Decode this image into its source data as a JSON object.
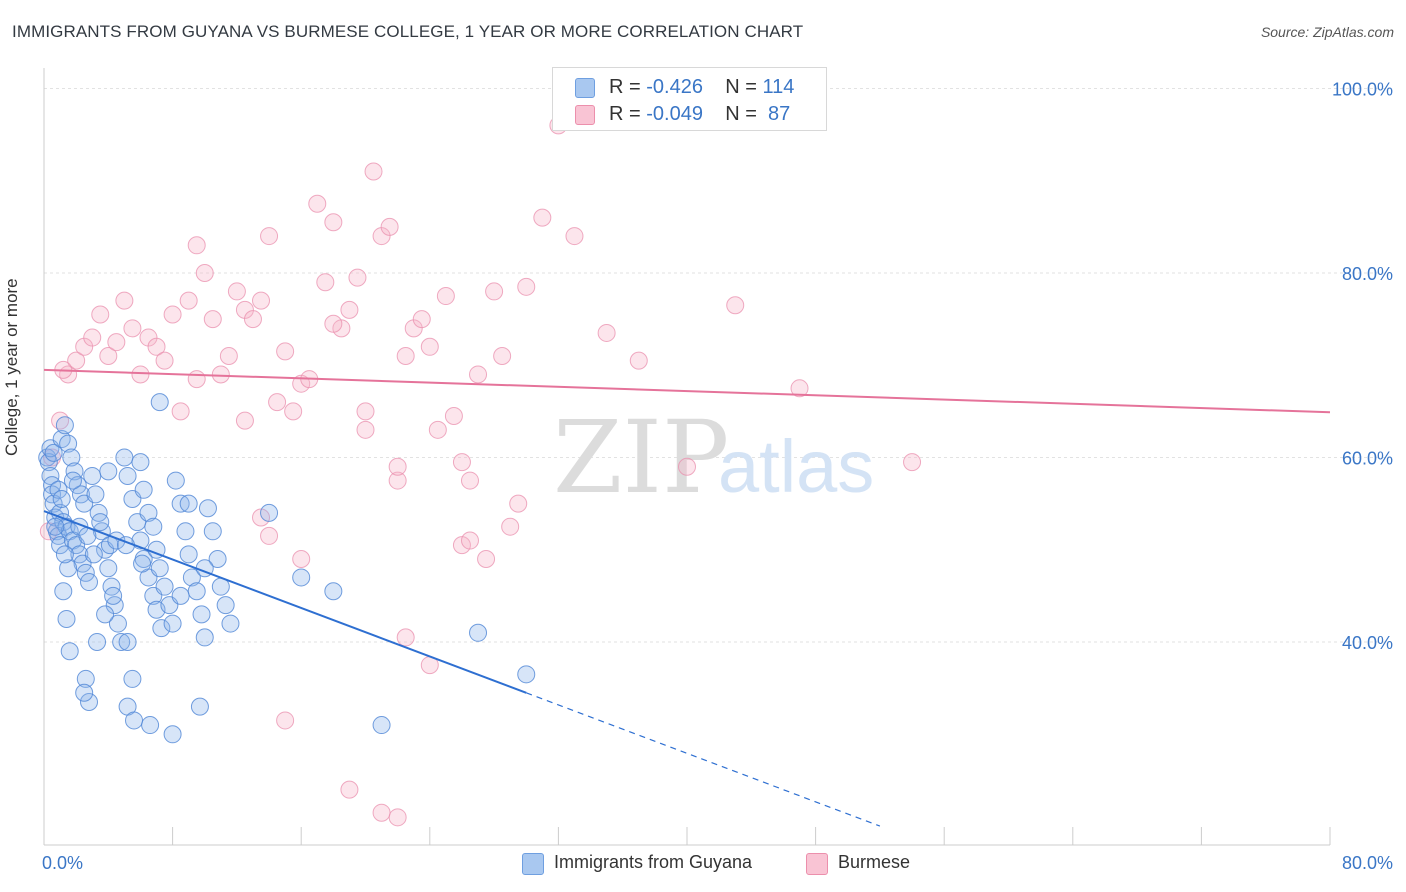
{
  "title": "IMMIGRANTS FROM GUYANA VS BURMESE COLLEGE, 1 YEAR OR MORE CORRELATION CHART",
  "source": "Source: ZipAtlas.com",
  "watermark": {
    "zip": "ZIP",
    "atlas": "atlas"
  },
  "legend": {
    "rows": [
      {
        "r_label": "R = ",
        "r_value": "-0.426",
        "n_label": "N = ",
        "n_value": "114",
        "color": "#a9c8f0",
        "border": "#6f9fe0"
      },
      {
        "r_label": "R = ",
        "r_value": "-0.049",
        "n_label": "N = ",
        "n_value": " 87",
        "color": "#f9c4d4",
        "border": "#ec8fac"
      }
    ]
  },
  "bottom_legend": [
    {
      "label": "Immigrants from Guyana",
      "color": "#a9c8f0",
      "border": "#6f9fe0"
    },
    {
      "label": "Burmese",
      "color": "#f9c4d4",
      "border": "#ec8fac"
    }
  ],
  "colors": {
    "blue_point_fill": "rgba(140,180,235,0.35)",
    "blue_point_stroke": "#4f86d6",
    "blue_line": "#2e6fd1",
    "pink_point_fill": "rgba(245,180,200,0.35)",
    "pink_point_stroke": "#ea8fae",
    "pink_line": "#e5739a",
    "axis_text": "#3a76c6",
    "grid": "#e2e2e2"
  },
  "chart_data": {
    "type": "scatter",
    "title": "IMMIGRANTS FROM GUYANA VS BURMESE COLLEGE, 1 YEAR OR MORE CORRELATION CHART",
    "xlabel": "",
    "ylabel": "College, 1 year or more",
    "xlim": [
      0,
      80
    ],
    "ylim": [
      18,
      102
    ],
    "x_tick_labels": [
      "0.0%",
      "80.0%"
    ],
    "y_ticks": [
      40,
      60,
      80,
      100
    ],
    "y_tick_labels": [
      "40.0%",
      "60.0%",
      "80.0%",
      "100.0%"
    ],
    "series": [
      {
        "name": "Immigrants from Guyana",
        "R": -0.426,
        "N": 114,
        "trend": {
          "x0": 0,
          "y0": 54.2,
          "x1": 30,
          "y1": 34.5,
          "dash_to_x": 52
        },
        "points": [
          [
            0.2,
            60
          ],
          [
            0.3,
            59.5
          ],
          [
            0.4,
            58
          ],
          [
            0.5,
            57
          ],
          [
            0.5,
            56
          ],
          [
            0.6,
            55
          ],
          [
            0.7,
            53.5
          ],
          [
            0.8,
            52
          ],
          [
            0.9,
            51.5
          ],
          [
            1,
            50.5
          ],
          [
            0.4,
            61
          ],
          [
            0.6,
            60.5
          ],
          [
            1.1,
            62
          ],
          [
            1.3,
            63.5
          ],
          [
            1.5,
            61.5
          ],
          [
            1.7,
            60
          ],
          [
            1.9,
            58.5
          ],
          [
            2.1,
            57
          ],
          [
            2.3,
            56
          ],
          [
            2.5,
            55
          ],
          [
            1,
            54
          ],
          [
            1.2,
            53
          ],
          [
            1.4,
            52.5
          ],
          [
            1.6,
            52
          ],
          [
            1.8,
            51
          ],
          [
            2,
            50.5
          ],
          [
            2.2,
            49.5
          ],
          [
            2.4,
            48.5
          ],
          [
            2.6,
            47.5
          ],
          [
            2.8,
            46.5
          ],
          [
            3,
            58
          ],
          [
            3.2,
            56
          ],
          [
            3.4,
            54
          ],
          [
            3.6,
            52
          ],
          [
            3.8,
            50
          ],
          [
            4,
            48
          ],
          [
            4.2,
            46
          ],
          [
            4.4,
            44
          ],
          [
            4.6,
            42
          ],
          [
            4.8,
            40
          ],
          [
            1.5,
            48
          ],
          [
            1.2,
            45.5
          ],
          [
            1.4,
            42.5
          ],
          [
            1.6,
            39
          ],
          [
            2.6,
            36
          ],
          [
            2.8,
            33.5
          ],
          [
            2.5,
            34.5
          ],
          [
            3.3,
            40
          ],
          [
            3.8,
            43
          ],
          [
            4.3,
            45
          ],
          [
            5,
            60
          ],
          [
            5.2,
            58
          ],
          [
            5.5,
            55.5
          ],
          [
            5.8,
            53
          ],
          [
            6,
            51
          ],
          [
            6.2,
            49
          ],
          [
            6.5,
            47
          ],
          [
            6.8,
            45
          ],
          [
            7,
            43.5
          ],
          [
            7.3,
            41.5
          ],
          [
            5.2,
            40
          ],
          [
            5.5,
            36
          ],
          [
            5.2,
            33
          ],
          [
            6,
            59.5
          ],
          [
            6.2,
            56.5
          ],
          [
            6.5,
            54
          ],
          [
            6.8,
            52.5
          ],
          [
            7,
            50
          ],
          [
            7.2,
            48
          ],
          [
            7.5,
            46
          ],
          [
            7.8,
            44
          ],
          [
            8,
            42
          ],
          [
            8.2,
            57.5
          ],
          [
            8.5,
            55
          ],
          [
            8.8,
            52
          ],
          [
            9,
            49.5
          ],
          [
            9.2,
            47
          ],
          [
            9.5,
            45.5
          ],
          [
            9.8,
            43
          ],
          [
            10,
            40.5
          ],
          [
            10.2,
            54.5
          ],
          [
            10.5,
            52
          ],
          [
            10.8,
            49
          ],
          [
            11,
            46
          ],
          [
            11.3,
            44
          ],
          [
            11.6,
            42
          ],
          [
            7.2,
            66
          ],
          [
            9,
            55
          ],
          [
            10,
            48
          ],
          [
            8.5,
            45
          ],
          [
            14,
            54
          ],
          [
            16,
            47
          ],
          [
            18,
            45.5
          ],
          [
            21,
            31
          ],
          [
            27,
            41
          ],
          [
            30,
            36.5
          ],
          [
            4,
            58.5
          ],
          [
            3.5,
            53
          ],
          [
            2.2,
            52.5
          ],
          [
            1.8,
            57.5
          ],
          [
            0.9,
            56.5
          ],
          [
            1.1,
            55.5
          ],
          [
            2.7,
            51.5
          ],
          [
            3.1,
            49.5
          ],
          [
            4.1,
            50.5
          ],
          [
            4.5,
            51
          ],
          [
            5.1,
            50.5
          ],
          [
            6.1,
            48.5
          ],
          [
            8,
            30
          ],
          [
            5.6,
            31.5
          ],
          [
            9.7,
            33
          ],
          [
            6.6,
            31
          ],
          [
            0.7,
            52.5
          ],
          [
            1.3,
            49.5
          ]
        ]
      },
      {
        "name": "Burmese",
        "R": -0.049,
        "N": 87,
        "trend": {
          "x0": 0,
          "y0": 69.5,
          "x1": 80,
          "y1": 64.9
        },
        "points": [
          [
            0.3,
            52
          ],
          [
            0.5,
            60
          ],
          [
            1,
            64
          ],
          [
            1.5,
            69
          ],
          [
            2,
            70.5
          ],
          [
            2.5,
            72
          ],
          [
            3,
            73
          ],
          [
            3.5,
            75.5
          ],
          [
            4,
            71
          ],
          [
            4.5,
            72.5
          ],
          [
            5,
            77
          ],
          [
            5.5,
            74
          ],
          [
            6,
            69
          ],
          [
            6.5,
            73
          ],
          [
            7,
            72
          ],
          [
            7.5,
            70.5
          ],
          [
            8,
            75.5
          ],
          [
            8.5,
            65
          ],
          [
            9,
            77
          ],
          [
            9.5,
            83
          ],
          [
            10,
            80
          ],
          [
            10.5,
            75
          ],
          [
            11,
            69
          ],
          [
            11.5,
            71
          ],
          [
            12,
            78
          ],
          [
            12.5,
            76
          ],
          [
            13,
            75
          ],
          [
            13.5,
            77
          ],
          [
            14,
            84
          ],
          [
            14.5,
            66
          ],
          [
            15,
            71.5
          ],
          [
            15.5,
            65
          ],
          [
            16,
            68
          ],
          [
            16.5,
            68.5
          ],
          [
            17,
            87.5
          ],
          [
            17.5,
            79
          ],
          [
            18,
            85.5
          ],
          [
            18.5,
            74
          ],
          [
            19,
            76
          ],
          [
            19.5,
            79.5
          ],
          [
            20,
            63
          ],
          [
            20.5,
            91
          ],
          [
            21,
            84
          ],
          [
            21.5,
            85
          ],
          [
            22,
            57.5
          ],
          [
            22.5,
            71
          ],
          [
            23,
            74
          ],
          [
            23.5,
            75
          ],
          [
            24,
            72
          ],
          [
            24.5,
            63
          ],
          [
            25,
            77.5
          ],
          [
            25.5,
            64.5
          ],
          [
            26,
            50.5
          ],
          [
            26.5,
            57.5
          ],
          [
            27,
            69
          ],
          [
            27.5,
            49
          ],
          [
            28,
            78
          ],
          [
            28.5,
            71
          ],
          [
            29,
            52.5
          ],
          [
            29.5,
            55
          ],
          [
            30,
            78.5
          ],
          [
            31,
            86
          ],
          [
            32,
            96
          ],
          [
            33,
            84
          ],
          [
            35,
            73.5
          ],
          [
            37,
            70.5
          ],
          [
            40,
            59
          ],
          [
            43,
            76.5
          ],
          [
            47,
            67.5
          ],
          [
            54,
            59.5
          ],
          [
            13.5,
            53.5
          ],
          [
            14,
            51.5
          ],
          [
            16,
            49
          ],
          [
            9.5,
            68.5
          ],
          [
            12.5,
            64
          ],
          [
            18,
            74.5
          ],
          [
            20,
            65
          ],
          [
            26,
            59.5
          ],
          [
            22,
            59
          ],
          [
            26.5,
            51
          ],
          [
            19,
            24
          ],
          [
            21,
            21.5
          ],
          [
            22,
            21
          ],
          [
            22.5,
            40.5
          ],
          [
            24,
            37.5
          ],
          [
            15,
            31.5
          ],
          [
            1.2,
            69.5
          ]
        ]
      }
    ]
  }
}
